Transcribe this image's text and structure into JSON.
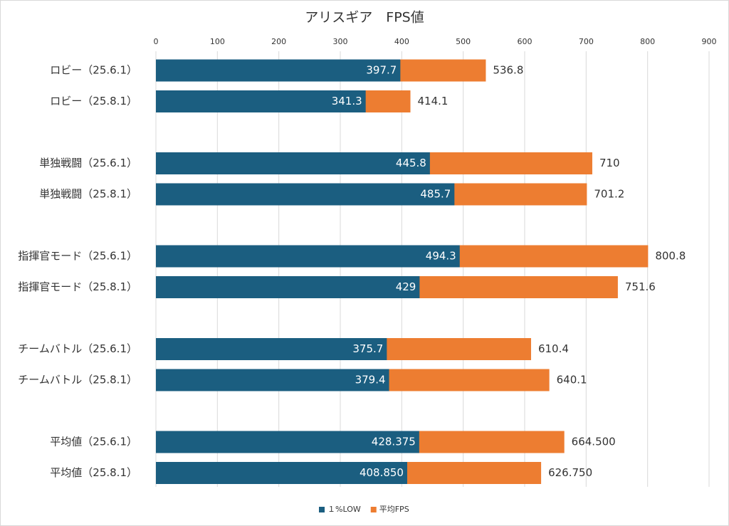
{
  "chart_data": {
    "type": "bar",
    "orientation": "horizontal",
    "title": "アリスギア　FPS値",
    "categories": [
      "ロビー（25.6.1）",
      "ロビー（25.8.1）",
      "単独戦闘（25.6.1）",
      "単独戦闘（25.8.1）",
      "指揮官モード（25.6.1）",
      "指揮官モード（25.8.1）",
      "チームバトル（25.6.1）",
      "チームバトル（25.8.1）",
      "平均値（25.6.1）",
      "平均値（25.8.1）"
    ],
    "series": [
      {
        "name": "平均FPS",
        "color": "#ed7d31",
        "values": [
          536.8,
          414.1,
          710,
          701.2,
          800.8,
          751.6,
          610.4,
          640.1,
          664.5,
          626.75
        ],
        "value_labels": [
          "536.8",
          "414.1",
          "710",
          "701.2",
          "800.8",
          "751.6",
          "610.4",
          "640.1",
          "664.500",
          "626.750"
        ]
      },
      {
        "name": "１%LOW",
        "color": "#1b5e80",
        "values": [
          397.7,
          341.3,
          445.8,
          485.7,
          494.3,
          429,
          375.7,
          379.4,
          428.375,
          408.85
        ],
        "value_labels": [
          "397.7",
          "341.3",
          "445.8",
          "485.7",
          "494.3",
          "429",
          "375.7",
          "379.4",
          "428.375",
          "408.850"
        ]
      }
    ],
    "xlim": [
      0,
      900
    ],
    "xticks": [
      0,
      100,
      200,
      300,
      400,
      500,
      600,
      700,
      800,
      900
    ],
    "grid": true,
    "legend": "bottom"
  }
}
